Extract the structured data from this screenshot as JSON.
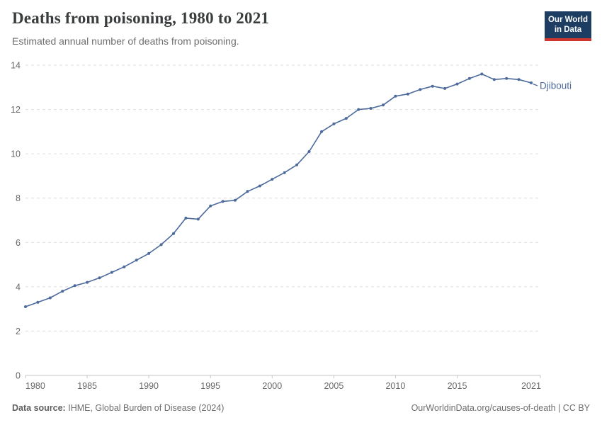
{
  "header": {
    "title": "Deaths from poisoning, 1980 to 2021",
    "subtitle": "Estimated annual number of deaths from poisoning.",
    "logo_line1": "Our World",
    "logo_line2": "in Data",
    "logo_bg_color": "#1d3d63",
    "logo_accent_color": "#d0342c"
  },
  "chart_data": {
    "type": "line",
    "title": "Deaths from poisoning, 1980 to 2021",
    "subtitle": "Estimated annual number of deaths from poisoning.",
    "entity": "Djibouti",
    "x": [
      1980,
      1981,
      1982,
      1983,
      1984,
      1985,
      1986,
      1987,
      1988,
      1989,
      1990,
      1991,
      1992,
      1993,
      1994,
      1995,
      1996,
      1997,
      1998,
      1999,
      2000,
      2001,
      2002,
      2003,
      2004,
      2005,
      2006,
      2007,
      2008,
      2009,
      2010,
      2011,
      2012,
      2013,
      2014,
      2015,
      2016,
      2017,
      2018,
      2019,
      2020,
      2021
    ],
    "series": [
      {
        "name": "Djibouti",
        "color": "#4c6a9c",
        "values": [
          3.1,
          3.3,
          3.5,
          3.8,
          4.05,
          4.2,
          4.4,
          4.65,
          4.9,
          5.2,
          5.5,
          5.9,
          6.4,
          7.1,
          7.05,
          7.65,
          7.85,
          7.9,
          8.3,
          8.55,
          8.85,
          9.15,
          9.5,
          10.1,
          11.0,
          11.35,
          11.6,
          12.0,
          12.05,
          12.2,
          12.6,
          12.7,
          12.9,
          13.05,
          12.95,
          13.15,
          13.4,
          13.6,
          13.35,
          13.4,
          13.35,
          13.2
        ]
      }
    ],
    "xlabel": "",
    "ylabel": "",
    "xlim": [
      1980,
      2021
    ],
    "ylim": [
      0,
      14
    ],
    "x_ticks": [
      1980,
      1985,
      1990,
      1995,
      2000,
      2005,
      2010,
      2015,
      2021
    ],
    "y_ticks": [
      0,
      2,
      4,
      6,
      8,
      10,
      12,
      14
    ],
    "grid": "horizontal-dashed",
    "legend_position": "end-of-line-label",
    "marker": "dot",
    "colors": {
      "line": "#4c6a9c",
      "grid": "#dcdcdc",
      "axis": "#c6c6c6",
      "tick_label": "#686868"
    }
  },
  "footer": {
    "source_label": "Data source:",
    "source_text": "IHME, Global Burden of Disease (2024)",
    "credit": "OurWorldinData.org/causes-of-death | CC BY"
  }
}
